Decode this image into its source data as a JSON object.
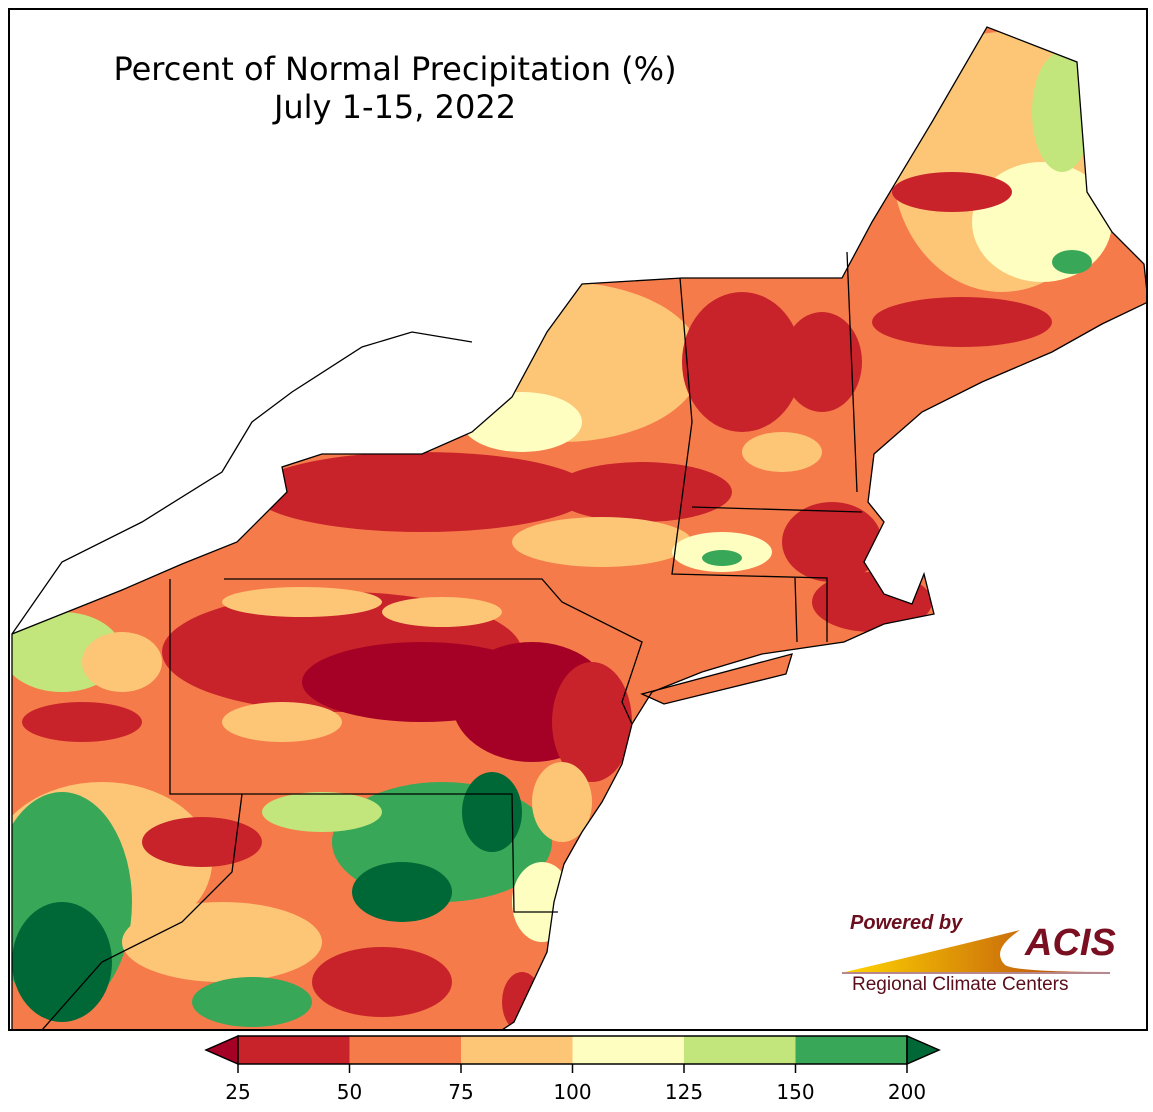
{
  "title": {
    "line1": "Percent of Normal Precipitation (%)",
    "line2": "July 1-15, 2022"
  },
  "legend": {
    "ticks": [
      "25",
      "50",
      "75",
      "100",
      "125",
      "150",
      "200"
    ],
    "bins": [
      {
        "range": "<25",
        "color": "#a50026"
      },
      {
        "range": "25-50",
        "color": "#c8232a"
      },
      {
        "range": "50-75",
        "color": "#f67b4a"
      },
      {
        "range": "75-100",
        "color": "#fdc677"
      },
      {
        "range": "100-125",
        "color": "#fefec0"
      },
      {
        "range": "125-150",
        "color": "#c2e67c"
      },
      {
        "range": "150-200",
        "color": "#39a758"
      },
      {
        "range": ">200",
        "color": "#006837"
      }
    ]
  },
  "logo": {
    "powered_by": "Powered by",
    "brand": "ACIS",
    "subtitle": "Regional Climate Centers"
  }
}
